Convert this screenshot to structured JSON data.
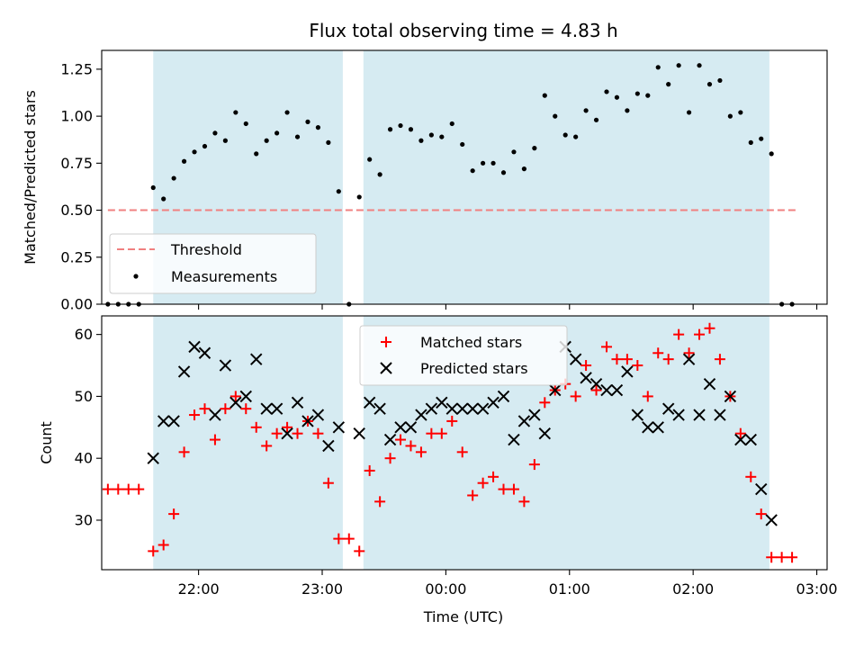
{
  "chart_data": [
    {
      "type": "scatter",
      "title": "Flux total observing time = 4.83 h",
      "xlabel": "",
      "ylabel": "Matched/Predicted stars",
      "ylim": [
        0,
        1.35
      ],
      "yticks": [
        "0.00",
        "0.25",
        "0.50",
        "0.75",
        "1.00",
        "1.25"
      ],
      "xlim": [
        "21:13",
        "03:05"
      ],
      "grid": false,
      "legend_position": "lower-left",
      "shaded_intervals": [
        [
          "21:38",
          "23:10"
        ],
        [
          "23:20",
          "02:37"
        ]
      ],
      "threshold": {
        "name": "Threshold",
        "value": 0.5,
        "x_range": [
          "21:16",
          "02:50"
        ],
        "color": "#f08080"
      },
      "series": [
        {
          "name": "Measurements",
          "color": "#000000",
          "marker": "dot",
          "x": [
            "21:16",
            "21:21",
            "21:26",
            "21:31",
            "21:38",
            "21:43",
            "21:48",
            "21:53",
            "21:58",
            "22:03",
            "22:08",
            "22:13",
            "22:18",
            "22:23",
            "22:28",
            "22:33",
            "22:38",
            "22:43",
            "22:48",
            "22:53",
            "22:58",
            "23:03",
            "23:08",
            "23:13",
            "23:18",
            "23:23",
            "23:28",
            "23:33",
            "23:38",
            "23:43",
            "23:48",
            "23:53",
            "23:58",
            "00:03",
            "00:08",
            "00:13",
            "00:18",
            "00:23",
            "00:28",
            "00:33",
            "00:38",
            "00:43",
            "00:48",
            "00:53",
            "00:58",
            "01:03",
            "01:08",
            "01:13",
            "01:18",
            "01:23",
            "01:28",
            "01:33",
            "01:38",
            "01:43",
            "01:48",
            "01:53",
            "01:58",
            "02:03",
            "02:08",
            "02:13",
            "02:18",
            "02:23",
            "02:28",
            "02:33",
            "02:38",
            "02:43",
            "02:48"
          ],
          "values": [
            0.0,
            0.0,
            0.0,
            0.0,
            0.62,
            0.56,
            0.67,
            0.76,
            0.81,
            0.84,
            0.91,
            0.87,
            1.02,
            0.96,
            0.8,
            0.87,
            0.91,
            1.02,
            0.89,
            0.97,
            0.94,
            0.86,
            0.6,
            0.0,
            0.57,
            0.77,
            0.69,
            0.93,
            0.95,
            0.93,
            0.87,
            0.9,
            0.89,
            0.96,
            0.85,
            0.71,
            0.75,
            0.75,
            0.7,
            0.81,
            0.72,
            0.83,
            1.11,
            1.0,
            0.9,
            0.89,
            1.03,
            0.98,
            1.13,
            1.1,
            1.03,
            1.12,
            1.11,
            1.26,
            1.17,
            1.27,
            1.02,
            1.27,
            1.17,
            1.19,
            1.0,
            1.02,
            0.86,
            0.88,
            0.8,
            0.0,
            0.0
          ]
        }
      ]
    },
    {
      "type": "scatter",
      "title": "",
      "xlabel": "Time (UTC)",
      "ylabel": "Count",
      "ylim": [
        22,
        63
      ],
      "yticks": [
        "30",
        "40",
        "50",
        "60"
      ],
      "xlim": [
        "21:13",
        "03:05"
      ],
      "xticks": [
        "22:00",
        "23:00",
        "00:00",
        "01:00",
        "02:00",
        "03:00"
      ],
      "grid": false,
      "legend_position": "upper-center",
      "shaded_intervals": [
        [
          "21:38",
          "23:10"
        ],
        [
          "23:20",
          "02:37"
        ]
      ],
      "series": [
        {
          "name": "Matched stars",
          "color": "#ff0000",
          "marker": "plus",
          "x": [
            "21:16",
            "21:21",
            "21:26",
            "21:31",
            "21:38",
            "21:43",
            "21:48",
            "21:53",
            "21:58",
            "22:03",
            "22:08",
            "22:13",
            "22:18",
            "22:23",
            "22:28",
            "22:33",
            "22:38",
            "22:43",
            "22:48",
            "22:53",
            "22:58",
            "23:03",
            "23:08",
            "23:13",
            "23:18",
            "23:23",
            "23:28",
            "23:33",
            "23:38",
            "23:43",
            "23:48",
            "23:53",
            "23:58",
            "00:03",
            "00:08",
            "00:13",
            "00:18",
            "00:23",
            "00:28",
            "00:33",
            "00:38",
            "00:43",
            "00:48",
            "00:53",
            "00:58",
            "01:03",
            "01:08",
            "01:13",
            "01:18",
            "01:23",
            "01:28",
            "01:33",
            "01:38",
            "01:43",
            "01:48",
            "01:53",
            "01:58",
            "02:03",
            "02:08",
            "02:13",
            "02:18",
            "02:23",
            "02:28",
            "02:33",
            "02:38",
            "02:43",
            "02:48"
          ],
          "values": [
            35,
            35,
            35,
            35,
            25,
            26,
            31,
            41,
            47,
            48,
            43,
            48,
            50,
            48,
            45,
            42,
            44,
            45,
            44,
            46,
            44,
            36,
            27,
            27,
            25,
            38,
            33,
            40,
            43,
            42,
            41,
            44,
            44,
            46,
            41,
            34,
            36,
            37,
            35,
            35,
            33,
            39,
            49,
            51,
            52,
            50,
            55,
            51,
            58,
            56,
            56,
            55,
            50,
            57,
            56,
            60,
            57,
            60,
            61,
            56,
            50,
            44,
            37,
            31,
            24,
            24,
            24
          ]
        },
        {
          "name": "Predicted stars",
          "color": "#000000",
          "marker": "x",
          "x": [
            "21:38",
            "21:43",
            "21:48",
            "21:53",
            "21:58",
            "22:03",
            "22:08",
            "22:13",
            "22:18",
            "22:23",
            "22:28",
            "22:33",
            "22:38",
            "22:43",
            "22:48",
            "22:53",
            "22:58",
            "23:03",
            "23:08",
            "23:18",
            "23:23",
            "23:28",
            "23:33",
            "23:38",
            "23:43",
            "23:48",
            "23:53",
            "23:58",
            "00:03",
            "00:08",
            "00:13",
            "00:18",
            "00:23",
            "00:28",
            "00:33",
            "00:38",
            "00:43",
            "00:48",
            "00:53",
            "00:58",
            "01:03",
            "01:08",
            "01:13",
            "01:18",
            "01:23",
            "01:28",
            "01:33",
            "01:38",
            "01:43",
            "01:48",
            "01:53",
            "01:58",
            "02:03",
            "02:08",
            "02:13",
            "02:18",
            "02:23",
            "02:28",
            "02:33",
            "02:38"
          ],
          "values": [
            40,
            46,
            46,
            54,
            58,
            57,
            47,
            55,
            49,
            50,
            56,
            48,
            48,
            44,
            49,
            46,
            47,
            42,
            45,
            44,
            49,
            48,
            43,
            45,
            45,
            47,
            48,
            49,
            48,
            48,
            48,
            48,
            49,
            50,
            43,
            46,
            47,
            44,
            51,
            58,
            56,
            53,
            52,
            51,
            51,
            54,
            47,
            45,
            45,
            48,
            47,
            56,
            47,
            52,
            47,
            50,
            43,
            43,
            35,
            30
          ]
        }
      ]
    }
  ]
}
